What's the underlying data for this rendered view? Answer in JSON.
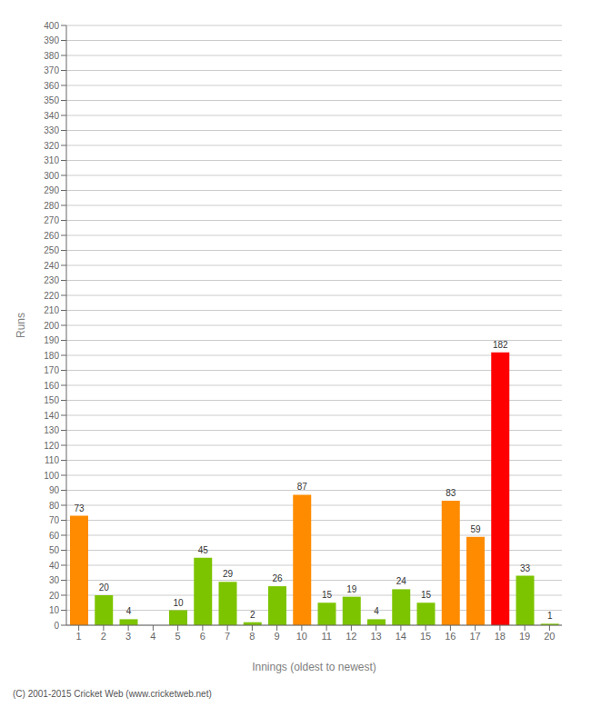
{
  "chart_data": {
    "type": "bar",
    "xlabel": "Innings (oldest to newest)",
    "ylabel": "Runs",
    "categories": [
      "1",
      "2",
      "3",
      "4",
      "5",
      "6",
      "7",
      "8",
      "9",
      "10",
      "11",
      "12",
      "13",
      "14",
      "15",
      "16",
      "17",
      "18",
      "19",
      "20"
    ],
    "values": [
      73,
      20,
      4,
      0,
      10,
      45,
      29,
      2,
      26,
      87,
      15,
      19,
      4,
      24,
      15,
      83,
      59,
      182,
      33,
      1
    ],
    "colors": [
      "#ff8c00",
      "#7dc400",
      "#7dc400",
      "#7dc400",
      "#7dc400",
      "#7dc400",
      "#7dc400",
      "#7dc400",
      "#7dc400",
      "#ff8c00",
      "#7dc400",
      "#7dc400",
      "#7dc400",
      "#7dc400",
      "#7dc400",
      "#ff8c00",
      "#ff8c00",
      "#ff0000",
      "#7dc400",
      "#7dc400"
    ],
    "ylim": [
      0,
      400
    ],
    "yticks": [
      0,
      10,
      20,
      30,
      40,
      50,
      60,
      70,
      80,
      90,
      100,
      110,
      120,
      130,
      140,
      150,
      160,
      170,
      180,
      190,
      200,
      210,
      220,
      230,
      240,
      250,
      260,
      270,
      280,
      290,
      300,
      310,
      320,
      330,
      340,
      350,
      360,
      370,
      380,
      390,
      400
    ],
    "grid": true,
    "data_labels": true,
    "annotation": "(C) 2001-2015 Cricket Web (www.cricketweb.net)"
  }
}
